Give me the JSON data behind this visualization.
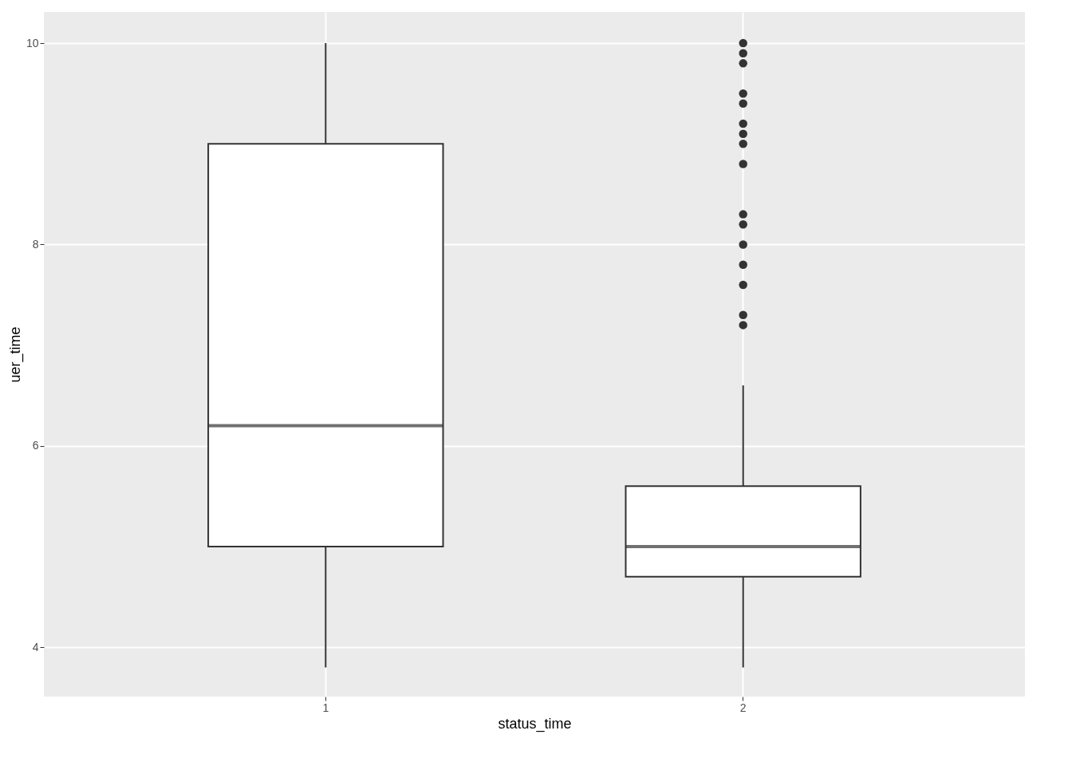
{
  "chart_data": {
    "type": "box",
    "xlabel": "status_time",
    "ylabel": "uer_time",
    "categories": [
      "1",
      "2"
    ],
    "boxes": [
      {
        "low": 3.8,
        "q1": 5.0,
        "median": 6.2,
        "q3": 9.0,
        "high": 10.0
      },
      {
        "low": 3.8,
        "q1": 4.7,
        "median": 5.0,
        "q3": 5.6,
        "high": 6.6,
        "outliers": [
          10.0,
          9.9,
          9.8,
          9.5,
          9.4,
          9.2,
          9.1,
          9.0,
          8.8,
          8.3,
          8.2,
          8.0,
          7.8,
          7.6,
          7.3,
          7.2
        ]
      }
    ],
    "ylim": [
      3.51,
      10.31
    ],
    "yticks": [
      4,
      6,
      8,
      10
    ],
    "grid": true
  }
}
